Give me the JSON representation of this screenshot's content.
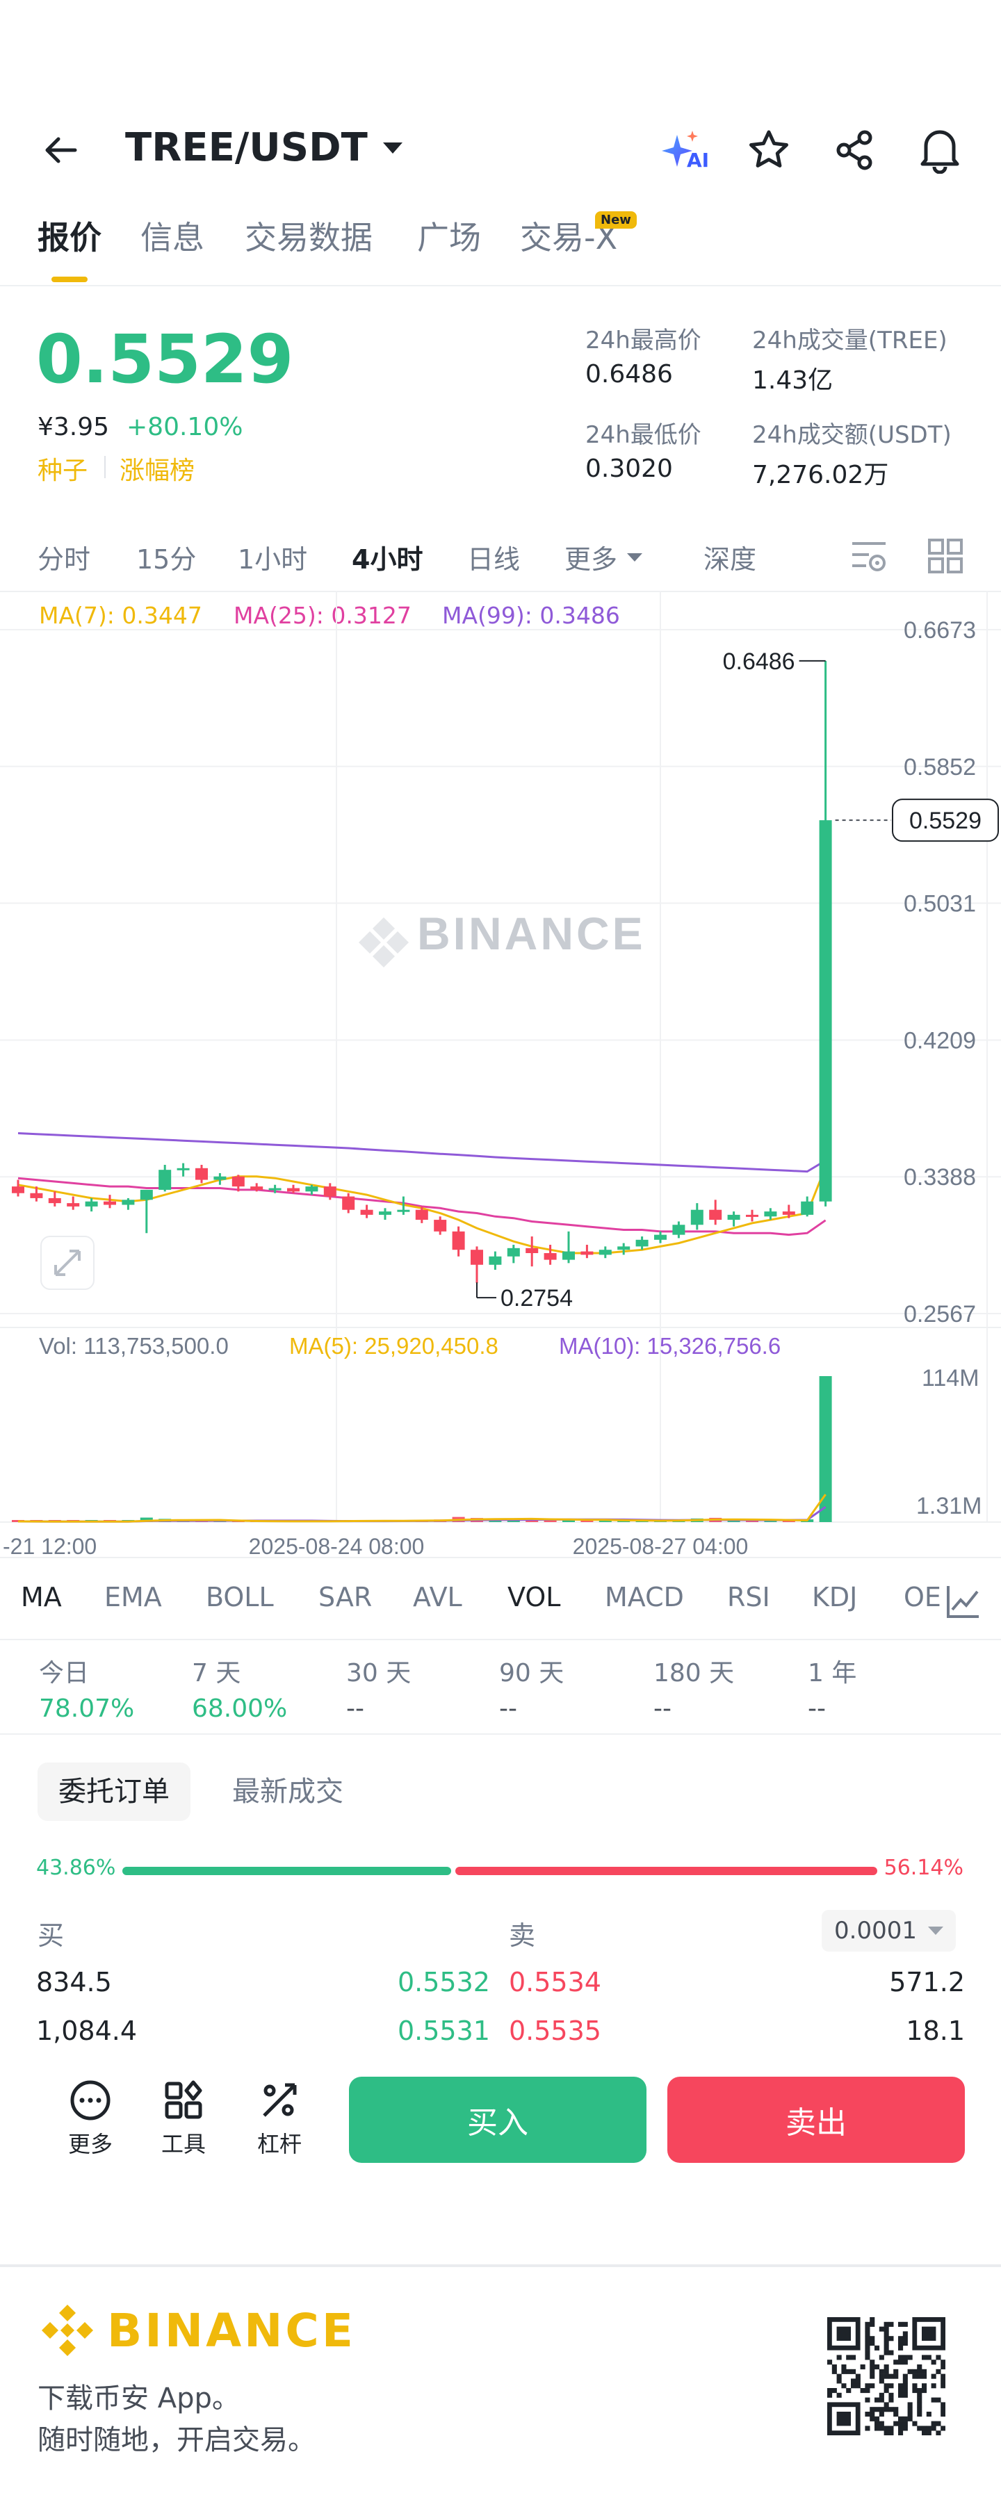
{
  "header": {
    "pair": "TREE/USDT",
    "ai_badge": "AI"
  },
  "tabs": [
    {
      "label": "报价"
    },
    {
      "label": "信息"
    },
    {
      "label": "交易数据"
    },
    {
      "label": "广场"
    },
    {
      "label": "交易-X"
    }
  ],
  "new_badge": "New",
  "price": {
    "last": "0.5529",
    "cny": "¥3.95",
    "change": "+80.10%",
    "tag_seed": "种子",
    "tag_rank": "涨幅榜"
  },
  "stats": {
    "high_label": "24h最高价",
    "high": "0.6486",
    "vol_label": "24h成交量(TREE)",
    "vol": "1.43亿",
    "low_label": "24h最低价",
    "low": "0.3020",
    "amount_label": "24h成交额(USDT)",
    "amount": "7,276.02万"
  },
  "intervals": [
    "分时",
    "15分",
    "1小时",
    "4小时",
    "日线",
    "更多",
    "深度"
  ],
  "ma_legend": {
    "ma7": "MA(7): 0.3447",
    "ma25": "MA(25): 0.3127",
    "ma99": "MA(99): 0.3486"
  },
  "vol_legend": {
    "vol": "Vol: 113,753,500.0",
    "ma5": "MA(5): 25,920,450.8",
    "ma10": "MA(10): 15,326,756.6"
  },
  "watermark": "BINANCE",
  "chart_data": {
    "type": "candlestick",
    "y_ticks": [
      "0.6673",
      "0.5852",
      "0.5031",
      "0.4209",
      "0.3388",
      "0.2567"
    ],
    "ylim": [
      0.2567,
      0.6673
    ],
    "last_price": "0.5529",
    "high_label": "0.6486",
    "low_label": "0.2754",
    "x_ticks": [
      "-21 12:00",
      "2025-08-24 08:00",
      "2025-08-27 04:00"
    ],
    "vol_ticks": [
      "114M",
      "1.31M"
    ],
    "candles": [
      {
        "o": 0.333,
        "h": 0.337,
        "l": 0.327,
        "c": 0.329
      },
      {
        "o": 0.329,
        "h": 0.333,
        "l": 0.324,
        "c": 0.326
      },
      {
        "o": 0.326,
        "h": 0.33,
        "l": 0.321,
        "c": 0.323
      },
      {
        "o": 0.323,
        "h": 0.327,
        "l": 0.319,
        "c": 0.321
      },
      {
        "o": 0.321,
        "h": 0.326,
        "l": 0.318,
        "c": 0.324
      },
      {
        "o": 0.324,
        "h": 0.328,
        "l": 0.32,
        "c": 0.322
      },
      {
        "o": 0.322,
        "h": 0.326,
        "l": 0.319,
        "c": 0.325
      },
      {
        "o": 0.325,
        "h": 0.33,
        "l": 0.305,
        "c": 0.331
      },
      {
        "o": 0.331,
        "h": 0.346,
        "l": 0.33,
        "c": 0.343
      },
      {
        "o": 0.343,
        "h": 0.347,
        "l": 0.339,
        "c": 0.344
      },
      {
        "o": 0.344,
        "h": 0.346,
        "l": 0.335,
        "c": 0.337
      },
      {
        "o": 0.337,
        "h": 0.341,
        "l": 0.334,
        "c": 0.339
      },
      {
        "o": 0.339,
        "h": 0.34,
        "l": 0.33,
        "c": 0.333
      },
      {
        "o": 0.333,
        "h": 0.335,
        "l": 0.33,
        "c": 0.331
      },
      {
        "o": 0.331,
        "h": 0.334,
        "l": 0.329,
        "c": 0.332
      },
      {
        "o": 0.332,
        "h": 0.334,
        "l": 0.329,
        "c": 0.33
      },
      {
        "o": 0.33,
        "h": 0.334,
        "l": 0.328,
        "c": 0.333
      },
      {
        "o": 0.333,
        "h": 0.335,
        "l": 0.325,
        "c": 0.327
      },
      {
        "o": 0.327,
        "h": 0.329,
        "l": 0.317,
        "c": 0.319
      },
      {
        "o": 0.319,
        "h": 0.322,
        "l": 0.314,
        "c": 0.316
      },
      {
        "o": 0.316,
        "h": 0.32,
        "l": 0.313,
        "c": 0.318
      },
      {
        "o": 0.318,
        "h": 0.327,
        "l": 0.316,
        "c": 0.319
      },
      {
        "o": 0.319,
        "h": 0.321,
        "l": 0.311,
        "c": 0.313
      },
      {
        "o": 0.313,
        "h": 0.315,
        "l": 0.304,
        "c": 0.306
      },
      {
        "o": 0.306,
        "h": 0.309,
        "l": 0.291,
        "c": 0.295
      },
      {
        "o": 0.295,
        "h": 0.297,
        "l": 0.275,
        "c": 0.286
      },
      {
        "o": 0.286,
        "h": 0.294,
        "l": 0.283,
        "c": 0.291
      },
      {
        "o": 0.291,
        "h": 0.298,
        "l": 0.287,
        "c": 0.296
      },
      {
        "o": 0.296,
        "h": 0.303,
        "l": 0.285,
        "c": 0.293
      },
      {
        "o": 0.293,
        "h": 0.298,
        "l": 0.286,
        "c": 0.289
      },
      {
        "o": 0.289,
        "h": 0.306,
        "l": 0.287,
        "c": 0.294
      },
      {
        "o": 0.294,
        "h": 0.298,
        "l": 0.29,
        "c": 0.292
      },
      {
        "o": 0.292,
        "h": 0.297,
        "l": 0.29,
        "c": 0.295
      },
      {
        "o": 0.295,
        "h": 0.299,
        "l": 0.292,
        "c": 0.297
      },
      {
        "o": 0.297,
        "h": 0.303,
        "l": 0.295,
        "c": 0.301
      },
      {
        "o": 0.301,
        "h": 0.306,
        "l": 0.299,
        "c": 0.304
      },
      {
        "o": 0.304,
        "h": 0.312,
        "l": 0.302,
        "c": 0.31
      },
      {
        "o": 0.31,
        "h": 0.323,
        "l": 0.307,
        "c": 0.319
      },
      {
        "o": 0.319,
        "h": 0.325,
        "l": 0.31,
        "c": 0.313
      },
      {
        "o": 0.313,
        "h": 0.318,
        "l": 0.309,
        "c": 0.316
      },
      {
        "o": 0.316,
        "h": 0.319,
        "l": 0.312,
        "c": 0.315
      },
      {
        "o": 0.315,
        "h": 0.32,
        "l": 0.313,
        "c": 0.318
      },
      {
        "o": 0.318,
        "h": 0.322,
        "l": 0.314,
        "c": 0.316
      },
      {
        "o": 0.316,
        "h": 0.327,
        "l": 0.315,
        "c": 0.324
      },
      {
        "o": 0.324,
        "h": 0.6486,
        "l": 0.321,
        "c": 0.5529
      }
    ],
    "volumes": [
      0.6,
      0.5,
      0.4,
      0.4,
      0.5,
      0.5,
      0.6,
      3.5,
      2.5,
      1.2,
      1.0,
      0.8,
      0.9,
      0.6,
      0.6,
      0.5,
      0.7,
      1.0,
      1.4,
      1.2,
      0.9,
      1.0,
      1.5,
      2.0,
      4.0,
      3.2,
      2.4,
      1.6,
      2.8,
      2.0,
      2.6,
      1.1,
      1.0,
      1.1,
      1.3,
      1.5,
      2.0,
      2.8,
      3.3,
      1.6,
      1.2,
      1.4,
      1.3,
      2.1,
      114
    ],
    "ma7": [
      0.334,
      0.332,
      0.33,
      0.328,
      0.326,
      0.325,
      0.324,
      0.325,
      0.328,
      0.331,
      0.334,
      0.337,
      0.339,
      0.339,
      0.338,
      0.336,
      0.334,
      0.332,
      0.33,
      0.328,
      0.325,
      0.322,
      0.32,
      0.317,
      0.313,
      0.308,
      0.304,
      0.3,
      0.297,
      0.295,
      0.293,
      0.293,
      0.293,
      0.294,
      0.295,
      0.297,
      0.299,
      0.302,
      0.305,
      0.308,
      0.311,
      0.313,
      0.315,
      0.317,
      0.3447
    ],
    "ma25": [
      0.338,
      0.337,
      0.336,
      0.335,
      0.334,
      0.333,
      0.333,
      0.332,
      0.332,
      0.332,
      0.332,
      0.332,
      0.331,
      0.331,
      0.33,
      0.329,
      0.328,
      0.327,
      0.326,
      0.325,
      0.324,
      0.323,
      0.321,
      0.32,
      0.318,
      0.317,
      0.315,
      0.314,
      0.312,
      0.311,
      0.31,
      0.309,
      0.308,
      0.307,
      0.307,
      0.306,
      0.306,
      0.306,
      0.306,
      0.305,
      0.305,
      0.305,
      0.304,
      0.305,
      0.3127
    ],
    "ma99": [
      0.365,
      0.3645,
      0.364,
      0.3635,
      0.363,
      0.3625,
      0.362,
      0.3615,
      0.361,
      0.3605,
      0.36,
      0.3595,
      0.359,
      0.3585,
      0.358,
      0.3575,
      0.357,
      0.3565,
      0.356,
      0.3553,
      0.3546,
      0.354,
      0.3533,
      0.3526,
      0.352,
      0.3513,
      0.3506,
      0.35,
      0.3495,
      0.349,
      0.3485,
      0.348,
      0.3475,
      0.347,
      0.3465,
      0.346,
      0.3455,
      0.345,
      0.3445,
      0.344,
      0.3435,
      0.343,
      0.3425,
      0.342,
      0.3486
    ]
  },
  "indicators": [
    "MA",
    "EMA",
    "BOLL",
    "SAR",
    "AVL",
    "VOL",
    "MACD",
    "RSI",
    "KDJ",
    "OE"
  ],
  "performance": [
    {
      "label": "今日",
      "value": "78.07%"
    },
    {
      "label": "7 天",
      "value": "68.00%"
    },
    {
      "label": "30 天",
      "value": "--"
    },
    {
      "label": "90 天",
      "value": "--"
    },
    {
      "label": "180 天",
      "value": "--"
    },
    {
      "label": "1 年",
      "value": "--"
    }
  ],
  "orders": {
    "tab_active": "委托订单",
    "tab_other": "最新成交",
    "buy_pct": "43.86%",
    "sell_pct": "56.14%",
    "buy_ratio": 0.4386,
    "buy_label": "买",
    "sell_label": "卖",
    "precision": "0.0001",
    "rows": [
      {
        "bid_qty": "834.5",
        "bid": "0.5532",
        "ask": "0.5534",
        "ask_qty": "571.2"
      },
      {
        "bid_qty": "1,084.4",
        "bid": "0.5531",
        "ask": "0.5535",
        "ask_qty": "18.1"
      }
    ]
  },
  "bottom": {
    "more": "更多",
    "tools": "工具",
    "leverage": "杠杆",
    "buy": "买入",
    "sell": "卖出"
  },
  "footer": {
    "brand": "BINANCE",
    "line1": "下载币安 App。",
    "line2": "随时随地，开启交易。"
  },
  "colors": {
    "up": "#2ebd85",
    "down": "#f6465d",
    "accent": "#f0b90b",
    "ma7": "#f0b90b",
    "ma25": "#e040a0",
    "ma99": "#8f5ad8"
  }
}
